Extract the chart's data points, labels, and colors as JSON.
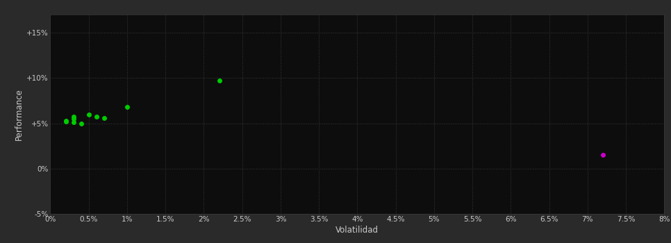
{
  "background_color": "#2a2a2a",
  "plot_bg_color": "#0d0d0d",
  "grid_color": "#3a3a3a",
  "text_color": "#cccccc",
  "xlabel": "Volatilidad",
  "ylabel": "Performance",
  "xlim": [
    0,
    0.08
  ],
  "ylim": [
    -0.05,
    0.17
  ],
  "xtick_step": 0.005,
  "ytick_vals": [
    -0.05,
    0.0,
    0.05,
    0.1,
    0.15
  ],
  "ytick_labels": [
    "-5%",
    "0%",
    "+5%",
    "+10%",
    "+15%"
  ],
  "green_points": [
    [
      0.002,
      0.053
    ],
    [
      0.002,
      0.052
    ],
    [
      0.003,
      0.057
    ],
    [
      0.003,
      0.055
    ],
    [
      0.003,
      0.051
    ],
    [
      0.004,
      0.05
    ],
    [
      0.005,
      0.06
    ],
    [
      0.006,
      0.057
    ],
    [
      0.007,
      0.056
    ],
    [
      0.01,
      0.068
    ],
    [
      0.022,
      0.097
    ]
  ],
  "magenta_points": [
    [
      0.072,
      0.015
    ]
  ],
  "green_color": "#00cc00",
  "magenta_color": "#cc00cc",
  "marker_size": 5
}
